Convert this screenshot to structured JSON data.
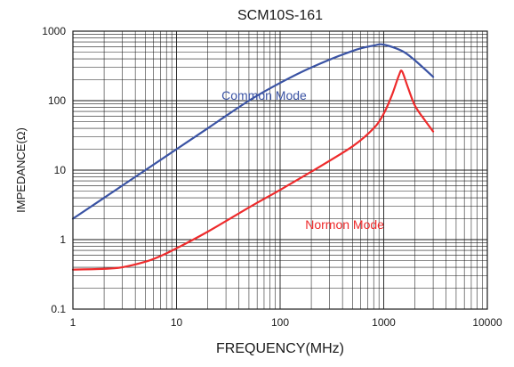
{
  "chart_data": {
    "type": "line",
    "title": "SCM10S-161",
    "xlabel": "FREQUENCY(MHz)",
    "ylabel": "IMPEDANCE(Ω)",
    "xscale": "log",
    "yscale": "log",
    "xlim": [
      1,
      10000
    ],
    "ylim": [
      0.1,
      1000
    ],
    "x_ticks": [
      1,
      10,
      100,
      1000,
      10000
    ],
    "x_tick_labels": [
      "1",
      "10",
      "100",
      "1000",
      "10000"
    ],
    "y_ticks": [
      0.1,
      1,
      10,
      100,
      1000
    ],
    "y_tick_labels": [
      "0.1",
      "1",
      "10",
      "100",
      "1000"
    ],
    "grid": true,
    "series": [
      {
        "name": "Common Mode",
        "color": "#3a53a4",
        "x": [
          1,
          2,
          5,
          10,
          20,
          50,
          100,
          200,
          500,
          800,
          1000,
          1500,
          2000,
          3000
        ],
        "y": [
          2,
          4,
          10,
          20,
          40,
          100,
          180,
          300,
          520,
          620,
          640,
          520,
          380,
          220
        ]
      },
      {
        "name": "Normon Mode",
        "color": "#ee2b2c",
        "x": [
          1,
          2,
          3,
          5,
          7,
          10,
          20,
          50,
          100,
          200,
          500,
          800,
          1000,
          1200,
          1400,
          1500,
          1700,
          2000,
          2500,
          3000
        ],
        "y": [
          0.37,
          0.38,
          0.4,
          0.48,
          0.58,
          0.75,
          1.3,
          2.9,
          5.2,
          9.5,
          22,
          40,
          65,
          120,
          230,
          265,
          160,
          85,
          52,
          36
        ]
      }
    ],
    "annotations": [
      {
        "text": "Common Mode",
        "x": 70,
        "y": 120,
        "color": "#3a53a4"
      },
      {
        "text": "Normon Mode",
        "x": 420,
        "y": 1.65,
        "color": "#ee2b2c"
      }
    ]
  }
}
